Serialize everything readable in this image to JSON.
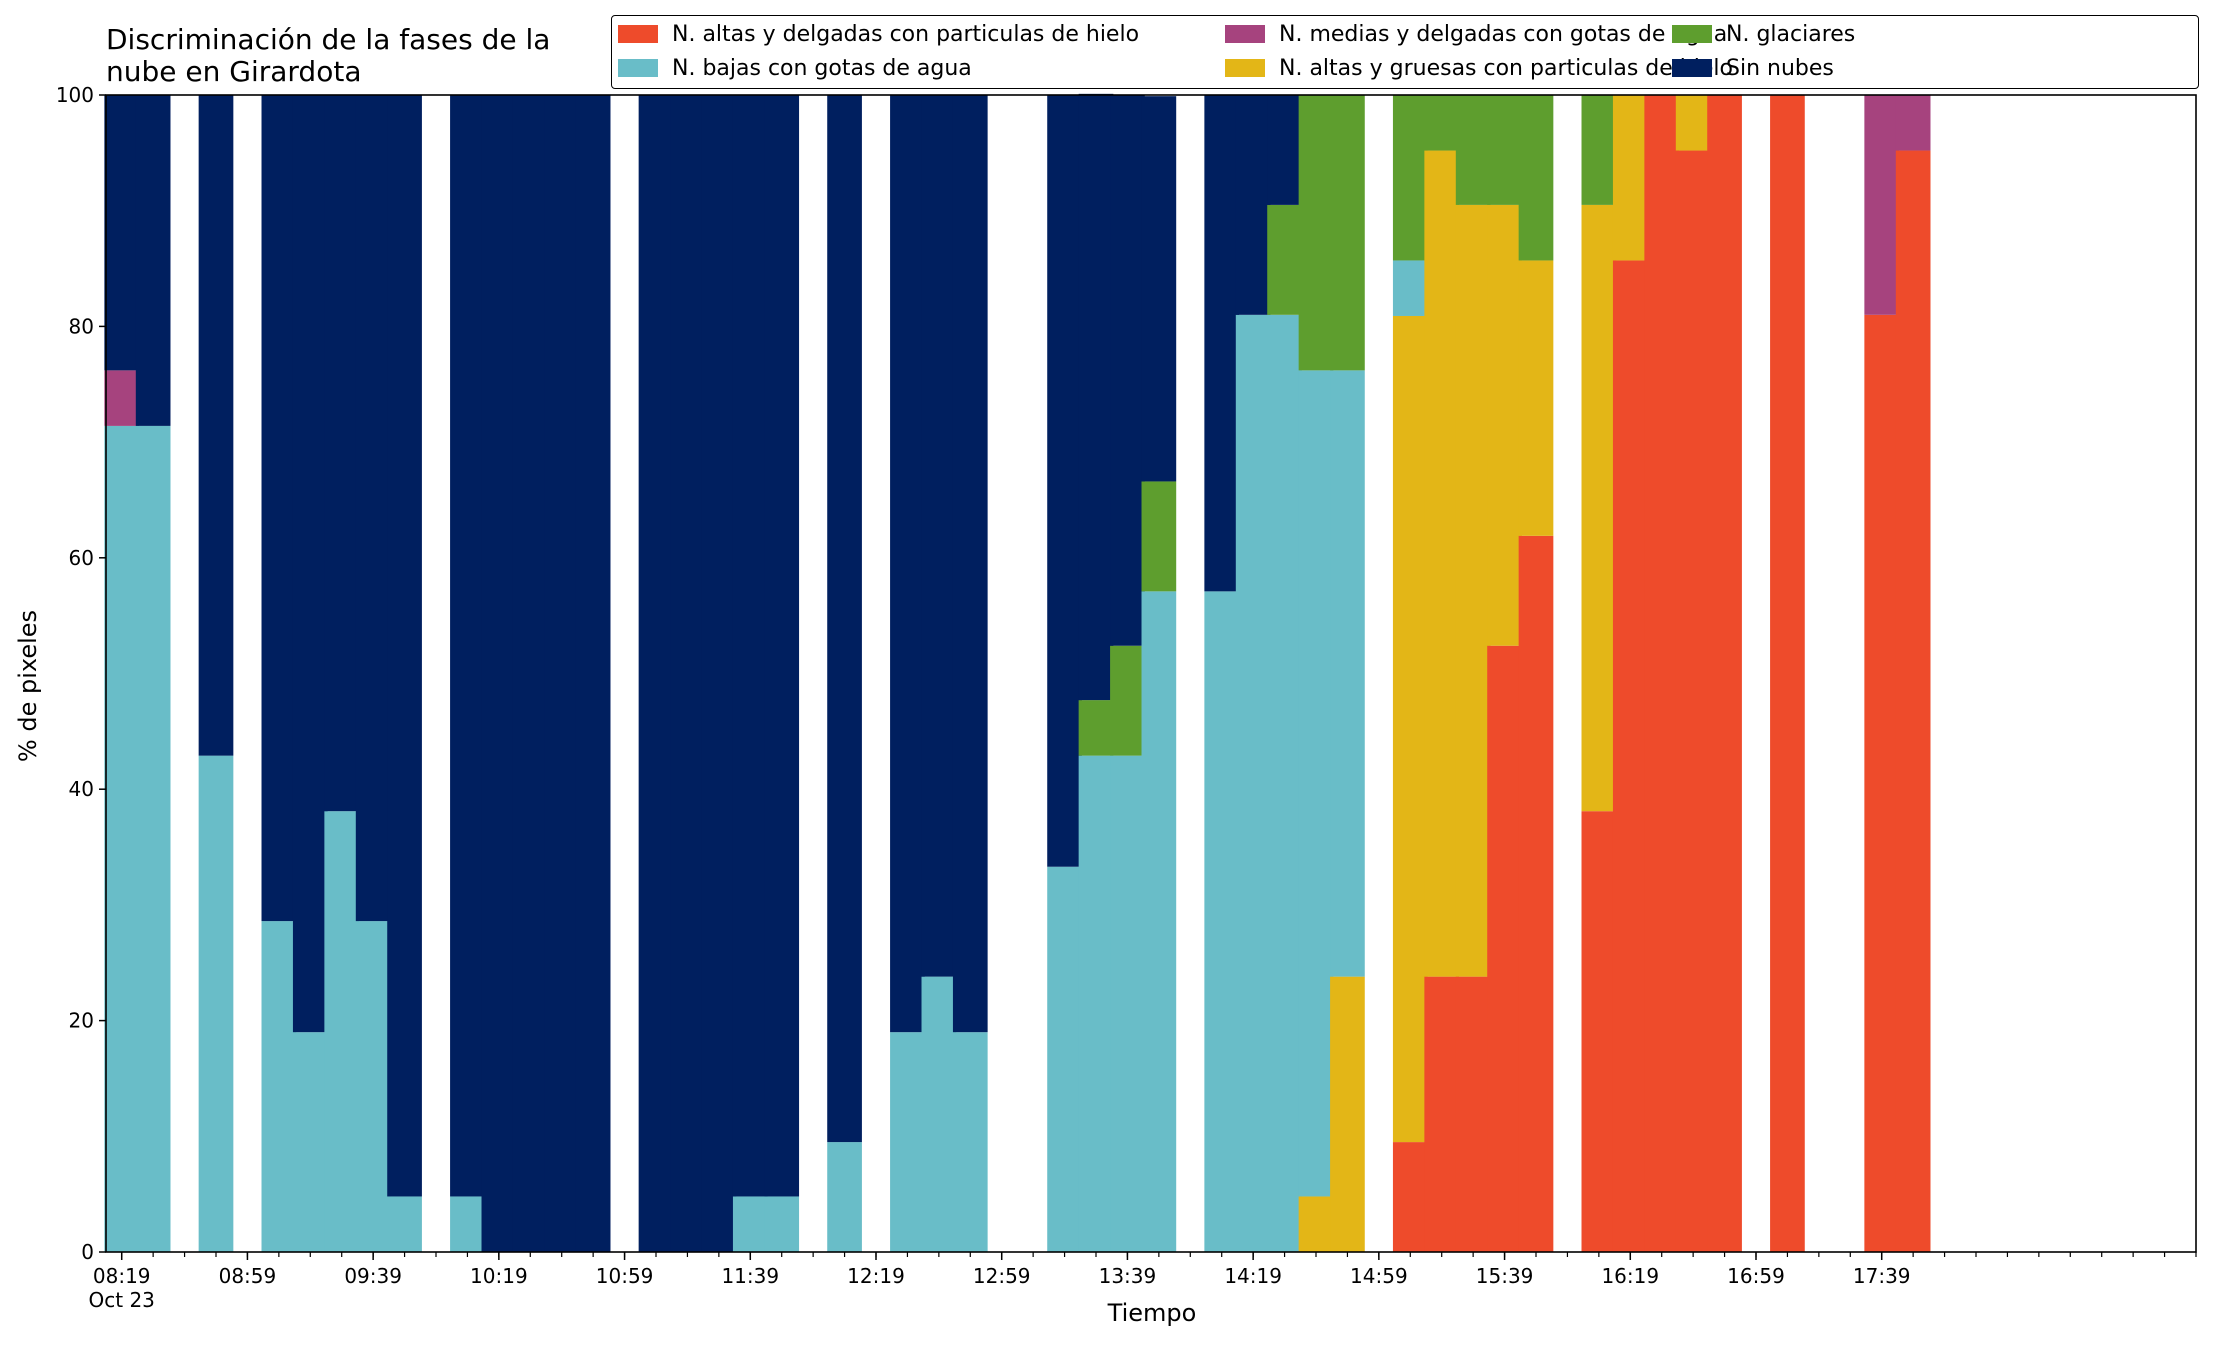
{
  "chart_data": {
    "type": "bar",
    "stacked": true,
    "title": "Discriminación de la fases de la\nnube en Girardota",
    "title_lines": [
      "Discriminación de la fases de la",
      "nube en Girardota"
    ],
    "xlabel": "Tiempo",
    "ylabel": "% de pixeles",
    "ylim": [
      0,
      100
    ],
    "yticks": [
      "0",
      "20",
      "40",
      "60",
      "80",
      "100"
    ],
    "x_tick_labels": [
      "08:19",
      "08:59",
      "09:39",
      "10:19",
      "10:59",
      "11:39",
      "12:19",
      "12:59",
      "13:39",
      "14:19",
      "14:59",
      "15:39",
      "16:19",
      "16:59",
      "17:39"
    ],
    "x_date_label": "Oct 23",
    "x_range_minutes": [
      "08:14",
      "19:19"
    ],
    "legend_position": "top",
    "legend_columns": 3,
    "series": [
      {
        "name": "N. altas y delgadas con particulas de hielo",
        "color": "#ee4b2b"
      },
      {
        "name": "N. altas y gruesas con particulas de hielo",
        "color": "#e3b617"
      },
      {
        "name": "N. bajas con gotas de agua",
        "color": "#69bdc8"
      },
      {
        "name": "N. glaciares",
        "color": "#5e9e2e"
      },
      {
        "name": "N. medias y delgadas con gotas de agua",
        "color": "#a6437e"
      },
      {
        "name": "Sin nubes",
        "color": "#001f5f"
      }
    ],
    "legend_order": [
      0,
      2,
      4,
      1,
      3,
      5
    ],
    "stack_order": [
      0,
      1,
      2,
      3,
      4,
      5
    ],
    "bars": [
      {
        "time": "08:19",
        "values": [
          0,
          0,
          71.4,
          0,
          4.8,
          23.8
        ]
      },
      {
        "time": "08:29",
        "values": [
          0,
          0,
          71.4,
          0,
          0,
          28.6
        ]
      },
      {
        "time": "08:49",
        "values": [
          0,
          0,
          42.9,
          0,
          0,
          57.1
        ]
      },
      {
        "time": "09:09",
        "values": [
          0,
          0,
          28.6,
          0,
          0,
          71.4
        ]
      },
      {
        "time": "09:19",
        "values": [
          0,
          0,
          19.0,
          0,
          0,
          81.0
        ]
      },
      {
        "time": "09:29",
        "values": [
          0,
          0,
          38.1,
          0,
          0,
          61.9
        ]
      },
      {
        "time": "09:39",
        "values": [
          0,
          0,
          28.6,
          0,
          0,
          71.4
        ]
      },
      {
        "time": "09:49",
        "values": [
          0,
          0,
          4.8,
          0,
          0,
          95.2
        ]
      },
      {
        "time": "10:09",
        "values": [
          0,
          0,
          4.8,
          0,
          0,
          95.2
        ]
      },
      {
        "time": "10:19",
        "values": [
          0,
          0,
          0,
          0,
          0,
          100
        ]
      },
      {
        "time": "10:29",
        "values": [
          0,
          0,
          0,
          0,
          0,
          100
        ]
      },
      {
        "time": "10:39",
        "values": [
          0,
          0,
          0,
          0,
          0,
          100
        ]
      },
      {
        "time": "10:49",
        "values": [
          0,
          0,
          0,
          0,
          0,
          100
        ]
      },
      {
        "time": "11:09",
        "values": [
          0,
          0,
          0,
          0,
          0,
          100
        ]
      },
      {
        "time": "11:19",
        "values": [
          0,
          0,
          0,
          0,
          0,
          100
        ]
      },
      {
        "time": "11:29",
        "values": [
          0,
          0,
          0,
          0,
          0,
          100
        ]
      },
      {
        "time": "11:39",
        "values": [
          0,
          0,
          4.8,
          0,
          0,
          95.2
        ]
      },
      {
        "time": "11:49",
        "values": [
          0,
          0,
          4.8,
          0,
          0,
          95.2
        ]
      },
      {
        "time": "12:09",
        "values": [
          0,
          0,
          9.5,
          0,
          0,
          90.5
        ]
      },
      {
        "time": "12:29",
        "values": [
          0,
          0,
          19.0,
          0,
          0,
          81.0
        ]
      },
      {
        "time": "12:39",
        "values": [
          0,
          0,
          23.8,
          0,
          0,
          76.2
        ]
      },
      {
        "time": "12:49",
        "values": [
          0,
          0,
          19.0,
          0,
          0,
          81.0
        ]
      },
      {
        "time": "13:19",
        "values": [
          0,
          0,
          33.3,
          0,
          0,
          66.7
        ]
      },
      {
        "time": "13:29",
        "values": [
          0,
          0,
          42.9,
          4.8,
          0,
          52.4
        ]
      },
      {
        "time": "13:39",
        "values": [
          0,
          0,
          42.9,
          9.5,
          0,
          47.6
        ]
      },
      {
        "time": "13:49",
        "values": [
          0,
          0,
          57.1,
          9.5,
          0,
          33.3
        ]
      },
      {
        "time": "14:09",
        "values": [
          0,
          0,
          57.1,
          0,
          0,
          42.9
        ]
      },
      {
        "time": "14:19",
        "values": [
          0,
          0,
          81.0,
          0,
          0,
          19.0
        ]
      },
      {
        "time": "14:29",
        "values": [
          0,
          0,
          81.0,
          9.5,
          0,
          9.5
        ]
      },
      {
        "time": "14:39",
        "values": [
          0,
          4.8,
          71.4,
          23.8,
          0,
          0
        ]
      },
      {
        "time": "14:49",
        "values": [
          0,
          23.8,
          52.4,
          23.8,
          0,
          0
        ]
      },
      {
        "time": "15:09",
        "values": [
          9.5,
          71.4,
          4.8,
          14.3,
          0,
          0
        ]
      },
      {
        "time": "15:19",
        "values": [
          23.8,
          71.4,
          0,
          4.8,
          0,
          0
        ]
      },
      {
        "time": "15:29",
        "values": [
          23.8,
          66.7,
          0,
          9.5,
          0,
          0
        ]
      },
      {
        "time": "15:39",
        "values": [
          52.4,
          38.1,
          0,
          9.5,
          0,
          0
        ]
      },
      {
        "time": "15:49",
        "values": [
          61.9,
          23.8,
          0,
          14.3,
          0,
          0
        ]
      },
      {
        "time": "16:09",
        "values": [
          38.1,
          52.4,
          0,
          9.5,
          0,
          0
        ]
      },
      {
        "time": "16:19",
        "values": [
          85.7,
          14.3,
          0,
          0,
          0,
          0
        ]
      },
      {
        "time": "16:29",
        "values": [
          100,
          0,
          0,
          0,
          0,
          0
        ]
      },
      {
        "time": "16:39",
        "values": [
          95.2,
          4.8,
          0,
          0,
          0,
          0
        ]
      },
      {
        "time": "16:49",
        "values": [
          100,
          0,
          0,
          0,
          0,
          0
        ]
      },
      {
        "time": "17:09",
        "values": [
          100,
          0,
          0,
          0,
          0,
          0
        ]
      },
      {
        "time": "17:39",
        "values": [
          81.0,
          0,
          0,
          0,
          19.0,
          0
        ]
      },
      {
        "time": "17:49",
        "values": [
          95.2,
          0,
          0,
          0,
          4.8,
          0
        ]
      }
    ]
  }
}
